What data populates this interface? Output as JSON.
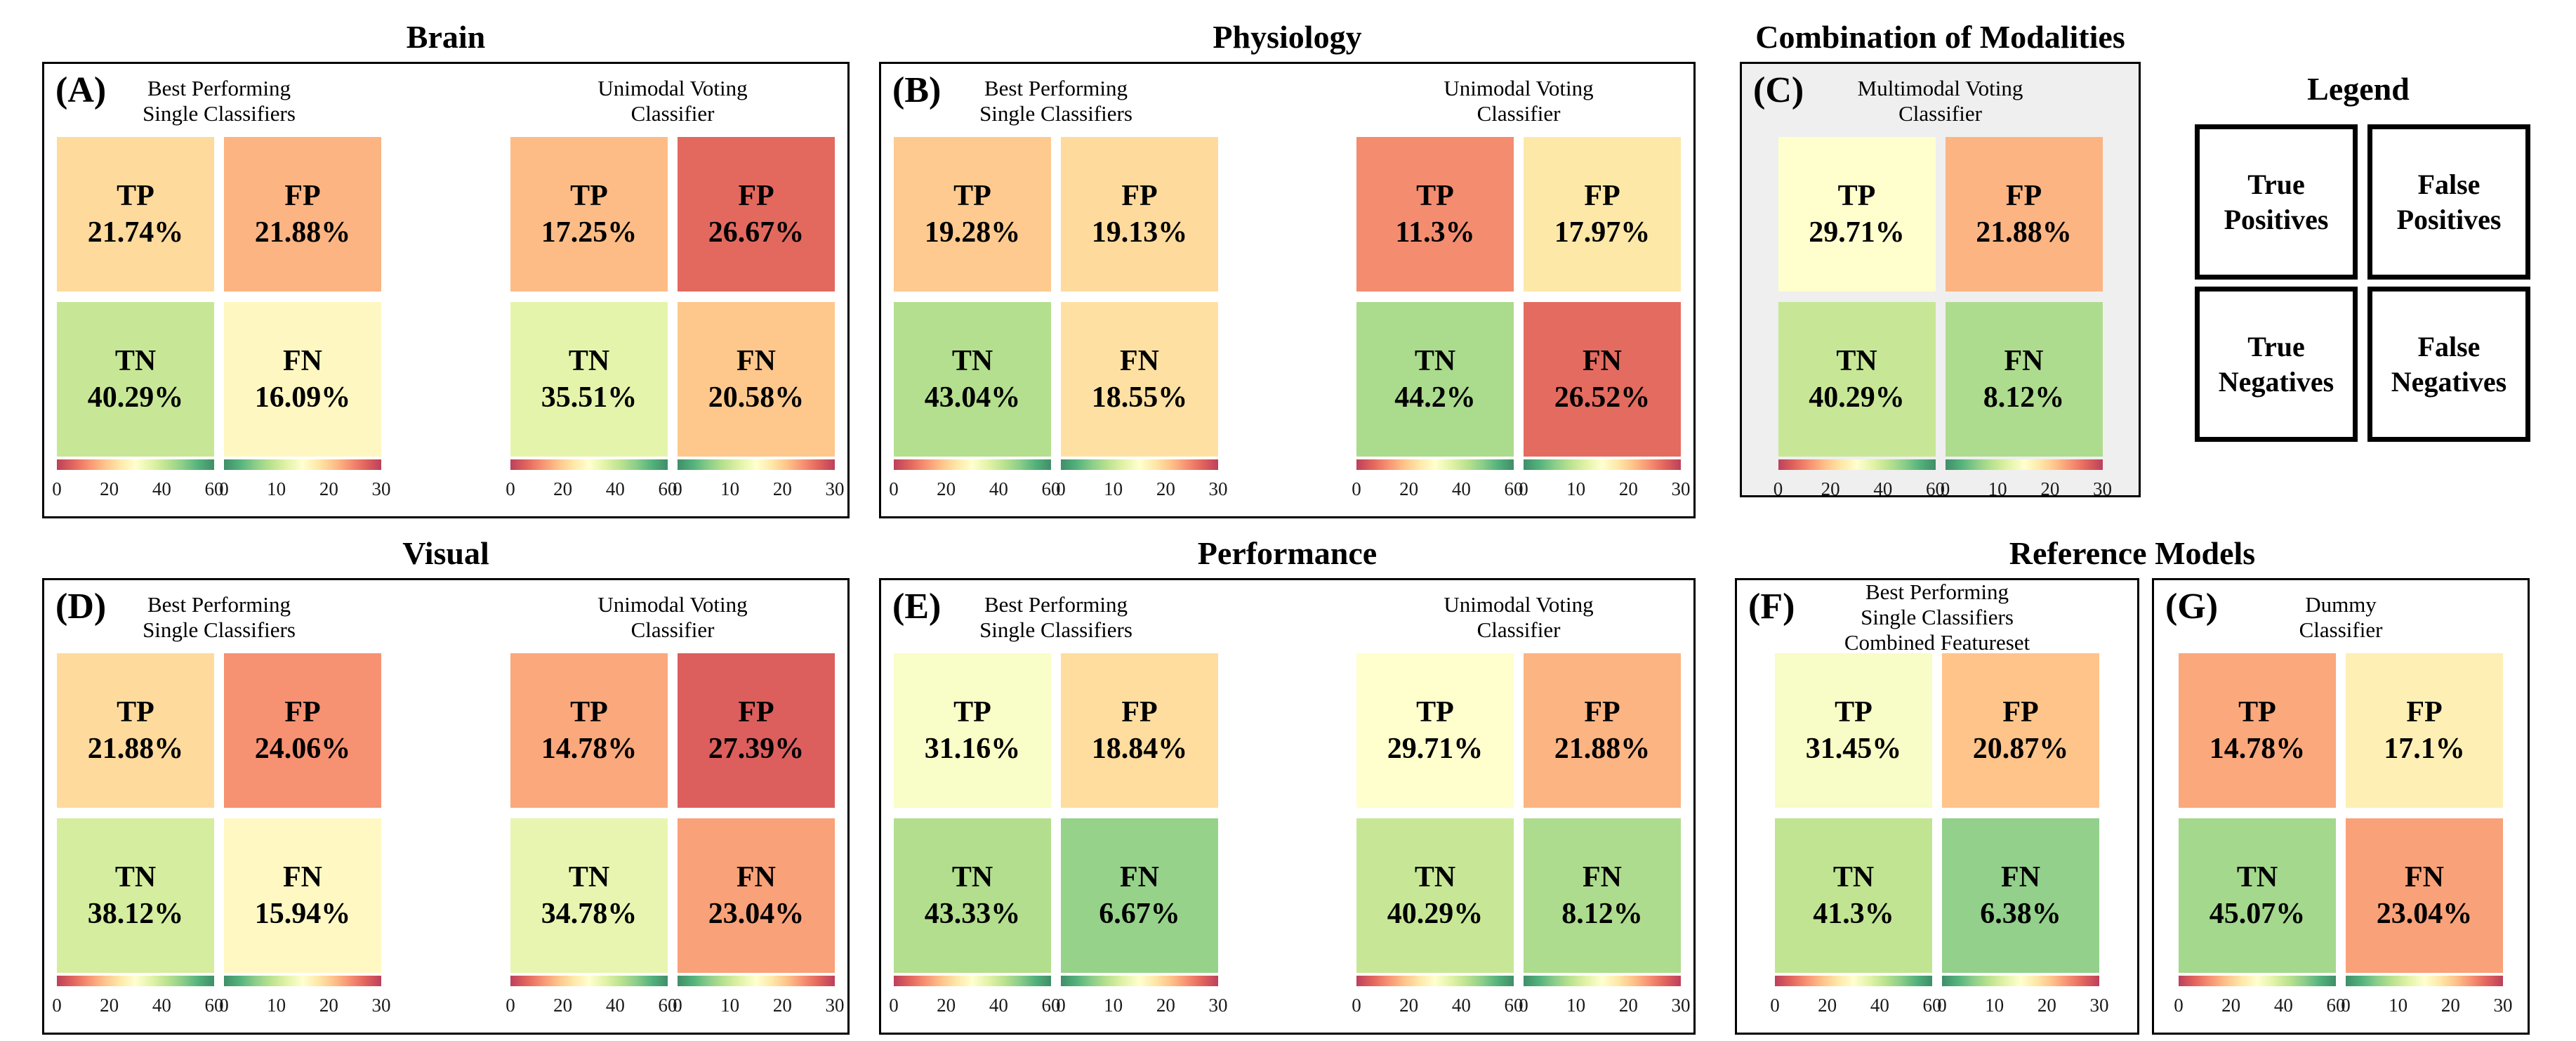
{
  "titles": [
    "Brain",
    "Physiology",
    "Combination of Modalities",
    "Visual",
    "Performance",
    "Reference Models"
  ],
  "legend": {
    "title": "Legend",
    "items": [
      {
        "label": "True Positives"
      },
      {
        "label": "False Positives"
      },
      {
        "label": "True Negatives"
      },
      {
        "label": "False Negatives"
      }
    ]
  },
  "colors": {
    "cmap_rdylgn": [
      "#a50026",
      "#d73027",
      "#f46d43",
      "#fdae61",
      "#fee08b",
      "#ffffbf",
      "#d9ef8b",
      "#a6d96a",
      "#66bd63",
      "#1a9850",
      "#006837"
    ],
    "cell_alpha": 0.75,
    "panel_c_background": "#efefef",
    "border": "#000000"
  },
  "chart_data": {
    "type": "heatmap",
    "note_units": "percent of samples",
    "scales": {
      "positive": {
        "min": 0,
        "max": 60,
        "ticks": [
          "0",
          "20",
          "40",
          "60"
        ],
        "reversed": false
      },
      "negative": {
        "min": 0,
        "max": 30,
        "ticks": [
          "0",
          "10",
          "20",
          "30"
        ],
        "reversed": true
      }
    },
    "panels": [
      {
        "id": "A",
        "letter": "(A)",
        "group": "Brain",
        "matrices": [
          {
            "header": [
              "Best Performing",
              "Single Classifiers"
            ],
            "cells": [
              {
                "label": "TP",
                "display": "21.74%",
                "value": 21.74,
                "scale": "positive"
              },
              {
                "label": "FP",
                "display": "21.88%",
                "value": 21.88,
                "scale": "negative"
              },
              {
                "label": "TN",
                "display": "40.29%",
                "value": 40.29,
                "scale": "positive"
              },
              {
                "label": "FN",
                "display": "16.09%",
                "value": 16.09,
                "scale": "negative"
              }
            ]
          },
          {
            "header": [
              "Unimodal Voting",
              "Classifier"
            ],
            "cells": [
              {
                "label": "TP",
                "display": "17.25%",
                "value": 17.25,
                "scale": "positive"
              },
              {
                "label": "FP",
                "display": "26.67%",
                "value": 26.67,
                "scale": "negative"
              },
              {
                "label": "TN",
                "display": "35.51%",
                "value": 35.51,
                "scale": "positive"
              },
              {
                "label": "FN",
                "display": "20.58%",
                "value": 20.58,
                "scale": "negative"
              }
            ]
          }
        ]
      },
      {
        "id": "B",
        "letter": "(B)",
        "group": "Physiology",
        "matrices": [
          {
            "header": [
              "Best Performing",
              "Single Classifiers"
            ],
            "cells": [
              {
                "label": "TP",
                "display": "19.28%",
                "value": 19.28,
                "scale": "positive"
              },
              {
                "label": "FP",
                "display": "19.13%",
                "value": 19.13,
                "scale": "negative"
              },
              {
                "label": "TN",
                "display": "43.04%",
                "value": 43.04,
                "scale": "positive"
              },
              {
                "label": "FN",
                "display": "18.55%",
                "value": 18.55,
                "scale": "negative"
              }
            ]
          },
          {
            "header": [
              "Unimodal Voting",
              "Classifier"
            ],
            "cells": [
              {
                "label": "TP",
                "display": "11.3%",
                "value": 11.3,
                "scale": "positive"
              },
              {
                "label": "FP",
                "display": "17.97%",
                "value": 17.97,
                "scale": "negative"
              },
              {
                "label": "TN",
                "display": "44.2%",
                "value": 44.2,
                "scale": "positive"
              },
              {
                "label": "FN",
                "display": "26.52%",
                "value": 26.52,
                "scale": "negative"
              }
            ]
          }
        ]
      },
      {
        "id": "C",
        "letter": "(C)",
        "group": "Combination of Modalities",
        "matrices": [
          {
            "header": [
              "Multimodal Voting",
              "Classifier"
            ],
            "cells": [
              {
                "label": "TP",
                "display": "29.71%",
                "value": 29.71,
                "scale": "positive"
              },
              {
                "label": "FP",
                "display": "21.88%",
                "value": 21.88,
                "scale": "negative"
              },
              {
                "label": "TN",
                "display": "40.29%",
                "value": 40.29,
                "scale": "positive"
              },
              {
                "label": "FN",
                "display": "8.12%",
                "value": 8.12,
                "scale": "negative"
              }
            ]
          }
        ]
      },
      {
        "id": "D",
        "letter": "(D)",
        "group": "Visual",
        "matrices": [
          {
            "header": [
              "Best Performing",
              "Single Classifiers"
            ],
            "cells": [
              {
                "label": "TP",
                "display": "21.88%",
                "value": 21.88,
                "scale": "positive"
              },
              {
                "label": "FP",
                "display": "24.06%",
                "value": 24.06,
                "scale": "negative"
              },
              {
                "label": "TN",
                "display": "38.12%",
                "value": 38.12,
                "scale": "positive"
              },
              {
                "label": "FN",
                "display": "15.94%",
                "value": 15.94,
                "scale": "negative"
              }
            ]
          },
          {
            "header": [
              "Unimodal Voting",
              "Classifier"
            ],
            "cells": [
              {
                "label": "TP",
                "display": "14.78%",
                "value": 14.78,
                "scale": "positive"
              },
              {
                "label": "FP",
                "display": "27.39%",
                "value": 27.39,
                "scale": "negative"
              },
              {
                "label": "TN",
                "display": "34.78%",
                "value": 34.78,
                "scale": "positive"
              },
              {
                "label": "FN",
                "display": "23.04%",
                "value": 23.04,
                "scale": "negative"
              }
            ]
          }
        ]
      },
      {
        "id": "E",
        "letter": "(E)",
        "group": "Performance",
        "matrices": [
          {
            "header": [
              "Best Performing",
              "Single Classifiers"
            ],
            "cells": [
              {
                "label": "TP",
                "display": "31.16%",
                "value": 31.16,
                "scale": "positive"
              },
              {
                "label": "FP",
                "display": "18.84%",
                "value": 18.84,
                "scale": "negative"
              },
              {
                "label": "TN",
                "display": "43.33%",
                "value": 43.33,
                "scale": "positive"
              },
              {
                "label": "FN",
                "display": "6.67%",
                "value": 6.67,
                "scale": "negative"
              }
            ]
          },
          {
            "header": [
              "Unimodal Voting",
              "Classifier"
            ],
            "cells": [
              {
                "label": "TP",
                "display": "29.71%",
                "value": 29.71,
                "scale": "positive"
              },
              {
                "label": "FP",
                "display": "21.88%",
                "value": 21.88,
                "scale": "negative"
              },
              {
                "label": "TN",
                "display": "40.29%",
                "value": 40.29,
                "scale": "positive"
              },
              {
                "label": "FN",
                "display": "8.12%",
                "value": 8.12,
                "scale": "negative"
              }
            ]
          }
        ]
      },
      {
        "id": "F",
        "letter": "(F)",
        "group": "Reference Models",
        "matrices": [
          {
            "header": [
              "Best Performing",
              "Single Classifiers",
              "Combined Featureset"
            ],
            "cells": [
              {
                "label": "TP",
                "display": "31.45%",
                "value": 31.45,
                "scale": "positive"
              },
              {
                "label": "FP",
                "display": "20.87%",
                "value": 20.87,
                "scale": "negative"
              },
              {
                "label": "TN",
                "display": "41.3%",
                "value": 41.3,
                "scale": "positive"
              },
              {
                "label": "FN",
                "display": "6.38%",
                "value": 6.38,
                "scale": "negative"
              }
            ]
          }
        ]
      },
      {
        "id": "G",
        "letter": "(G)",
        "group": "Reference Models",
        "matrices": [
          {
            "header": [
              "Dummy",
              "Classifier"
            ],
            "cells": [
              {
                "label": "TP",
                "display": "14.78%",
                "value": 14.78,
                "scale": "positive"
              },
              {
                "label": "FP",
                "display": "17.1%",
                "value": 17.1,
                "scale": "negative"
              },
              {
                "label": "TN",
                "display": "45.07%",
                "value": 45.07,
                "scale": "positive"
              },
              {
                "label": "FN",
                "display": "23.04%",
                "value": 23.04,
                "scale": "negative"
              }
            ]
          }
        ]
      }
    ]
  }
}
